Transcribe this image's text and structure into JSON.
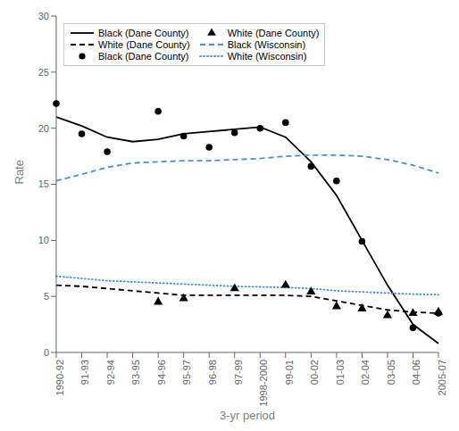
{
  "chart_data": {
    "type": "line",
    "categories": [
      "1990-92",
      "91-93",
      "92-94",
      "93-95",
      "94-96",
      "95-97",
      "96-98",
      "97-99",
      "1998-2000",
      "99-01",
      "00-02",
      "01-03",
      "02-04",
      "03-05",
      "04-06",
      "2005-07"
    ],
    "xlabel": "3-yr period",
    "ylabel": "Rate",
    "ylim": [
      0,
      30
    ],
    "yticks": [
      0,
      5,
      10,
      15,
      20,
      25,
      30
    ],
    "grid": false,
    "legend": "upper left",
    "series": [
      {
        "name": "Black (Dane County)",
        "type": "line",
        "color": "#000000",
        "line_style": "solid",
        "values": [
          21.0,
          20.2,
          19.2,
          18.8,
          19.0,
          19.5,
          19.7,
          19.9,
          20.1,
          19.2,
          17.0,
          14.0,
          10.0,
          6.0,
          2.5,
          0.8
        ]
      },
      {
        "name": "White (Dane County)",
        "type": "line",
        "color": "#000000",
        "line_style": "dashed",
        "values": [
          6.0,
          5.9,
          5.7,
          5.5,
          5.3,
          5.1,
          5.1,
          5.1,
          5.1,
          5.1,
          5.0,
          4.6,
          4.2,
          3.8,
          3.6,
          3.5
        ]
      },
      {
        "name": "Black (Dane County)",
        "type": "scatter",
        "color": "#000000",
        "marker": "circle",
        "values": [
          22.2,
          19.5,
          17.9,
          null,
          21.5,
          19.3,
          18.3,
          19.6,
          20.0,
          20.5,
          16.6,
          15.3,
          9.9,
          null,
          2.2,
          3.5
        ]
      },
      {
        "name": "White (Dane County)",
        "type": "scatter",
        "color": "#000000",
        "marker": "triangle",
        "values": [
          null,
          null,
          null,
          null,
          4.5,
          4.8,
          null,
          5.7,
          null,
          6.0,
          5.4,
          4.1,
          3.9,
          3.3,
          3.5,
          3.6
        ]
      },
      {
        "name": "Black (Wisconsin)",
        "type": "line",
        "color": "#4a90d9",
        "line_style": "dashed",
        "values": [
          15.3,
          15.9,
          16.5,
          16.9,
          17.0,
          17.1,
          17.1,
          17.2,
          17.3,
          17.5,
          17.6,
          17.6,
          17.5,
          17.2,
          16.7,
          16.0
        ]
      },
      {
        "name": "White (Wisconsin)",
        "type": "line",
        "color": "#4a90d9",
        "line_style": "dotted",
        "values": [
          6.8,
          6.6,
          6.4,
          6.3,
          6.2,
          6.1,
          6.0,
          5.9,
          5.85,
          5.8,
          5.7,
          5.5,
          5.4,
          5.3,
          5.2,
          5.15
        ]
      }
    ]
  }
}
